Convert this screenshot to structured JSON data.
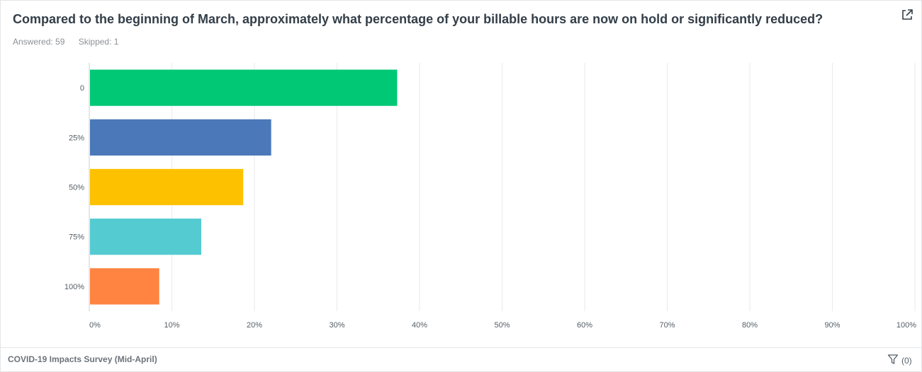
{
  "question": {
    "title": "Compared to the beginning of March, approximately what percentage of your billable hours are now on hold or significantly reduced?",
    "answered": "Answered: 59",
    "skipped": "Skipped: 1"
  },
  "icons": {
    "export": "external-link-icon",
    "filter": "filter-icon"
  },
  "footer": {
    "survey_name": "COVID-19 Impacts Survey (Mid-April)",
    "filter_count": "(0)"
  },
  "chart_data": {
    "type": "bar",
    "orientation": "horizontal",
    "categories": [
      "0",
      "25%",
      "50%",
      "75%",
      "100%"
    ],
    "values": [
      37.29,
      22.03,
      18.64,
      13.56,
      8.47
    ],
    "colors": [
      "#00c875",
      "#4a78b8",
      "#fdc100",
      "#54cbd1",
      "#ff8341"
    ],
    "xlim": [
      0,
      100
    ],
    "xticks": [
      "0%",
      "10%",
      "20%",
      "30%",
      "40%",
      "50%",
      "60%",
      "70%",
      "80%",
      "90%",
      "100%"
    ],
    "grid": true,
    "title": "",
    "xlabel": "",
    "ylabel": ""
  }
}
